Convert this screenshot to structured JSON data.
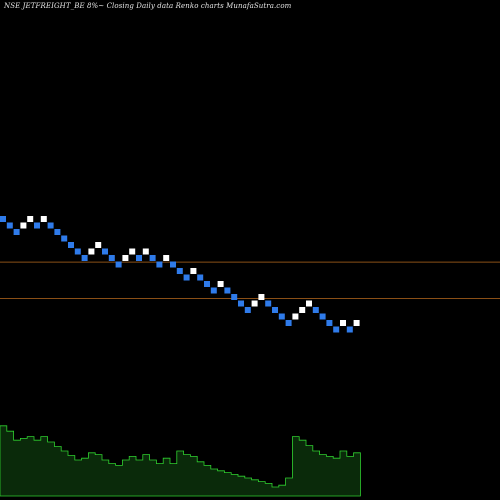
{
  "title": "NSE JETFREIGHT_BE 8%~  Closing Daily data  Renko  charts MunafaSutra.com",
  "colors": {
    "background": "#000000",
    "brick_up": "#ffffff",
    "brick_down": "#2f7bea",
    "reference_line": "#8a4f16",
    "volume_fill": "#0a2a0a",
    "volume_stroke": "#2fd02f",
    "label_text": "#ffffff"
  },
  "chart_data": {
    "type": "renko",
    "title": "NSE JETFREIGHT_BE 8%~  Closing Daily data  Renko  charts MunafaSutra.com",
    "brick_size_percent": 8,
    "grid": false,
    "bricks": [
      {
        "level": 0,
        "dir": "down"
      },
      {
        "level": -1,
        "dir": "down"
      },
      {
        "level": -2,
        "dir": "down"
      },
      {
        "level": -1,
        "dir": "up"
      },
      {
        "level": 0,
        "dir": "up"
      },
      {
        "level": -1,
        "dir": "down"
      },
      {
        "level": 0,
        "dir": "up"
      },
      {
        "level": -1,
        "dir": "down"
      },
      {
        "level": -2,
        "dir": "down"
      },
      {
        "level": -3,
        "dir": "down"
      },
      {
        "level": -4,
        "dir": "down"
      },
      {
        "level": -5,
        "dir": "down"
      },
      {
        "level": -6,
        "dir": "down"
      },
      {
        "level": -5,
        "dir": "up"
      },
      {
        "level": -4,
        "dir": "up"
      },
      {
        "level": -5,
        "dir": "down"
      },
      {
        "level": -6,
        "dir": "down"
      },
      {
        "level": -7,
        "dir": "down"
      },
      {
        "level": -6,
        "dir": "up"
      },
      {
        "level": -5,
        "dir": "up"
      },
      {
        "level": -6,
        "dir": "down"
      },
      {
        "level": -5,
        "dir": "up"
      },
      {
        "level": -6,
        "dir": "down"
      },
      {
        "level": -7,
        "dir": "down"
      },
      {
        "level": -6,
        "dir": "up"
      },
      {
        "level": -7,
        "dir": "down"
      },
      {
        "level": -8,
        "dir": "down"
      },
      {
        "level": -9,
        "dir": "down"
      },
      {
        "level": -8,
        "dir": "up"
      },
      {
        "level": -9,
        "dir": "down"
      },
      {
        "level": -10,
        "dir": "down"
      },
      {
        "level": -11,
        "dir": "down"
      },
      {
        "level": -10,
        "dir": "up"
      },
      {
        "level": -11,
        "dir": "down"
      },
      {
        "level": -12,
        "dir": "down"
      },
      {
        "level": -13,
        "dir": "down"
      },
      {
        "level": -14,
        "dir": "down"
      },
      {
        "level": -13,
        "dir": "up"
      },
      {
        "level": -12,
        "dir": "up"
      },
      {
        "level": -13,
        "dir": "down"
      },
      {
        "level": -14,
        "dir": "down"
      },
      {
        "level": -15,
        "dir": "down"
      },
      {
        "level": -16,
        "dir": "down"
      },
      {
        "level": -15,
        "dir": "up"
      },
      {
        "level": -14,
        "dir": "up"
      },
      {
        "level": -13,
        "dir": "up"
      },
      {
        "level": -14,
        "dir": "down"
      },
      {
        "level": -15,
        "dir": "down"
      },
      {
        "level": -16,
        "dir": "down"
      },
      {
        "level": -17,
        "dir": "down"
      },
      {
        "level": -16,
        "dir": "up"
      },
      {
        "level": -17,
        "dir": "down"
      },
      {
        "level": -16,
        "dir": "up"
      }
    ],
    "reference_lines": [
      -6.6,
      -12.2
    ],
    "volume": [
      0.78,
      0.72,
      0.62,
      0.64,
      0.66,
      0.62,
      0.66,
      0.6,
      0.55,
      0.5,
      0.45,
      0.4,
      0.42,
      0.48,
      0.46,
      0.4,
      0.36,
      0.34,
      0.4,
      0.44,
      0.4,
      0.46,
      0.4,
      0.36,
      0.42,
      0.36,
      0.5,
      0.46,
      0.44,
      0.38,
      0.34,
      0.3,
      0.28,
      0.26,
      0.24,
      0.22,
      0.2,
      0.18,
      0.16,
      0.14,
      0.1,
      0.12,
      0.2,
      0.66,
      0.62,
      0.56,
      0.5,
      0.46,
      0.44,
      0.42,
      0.5,
      0.44,
      0.48
    ]
  }
}
